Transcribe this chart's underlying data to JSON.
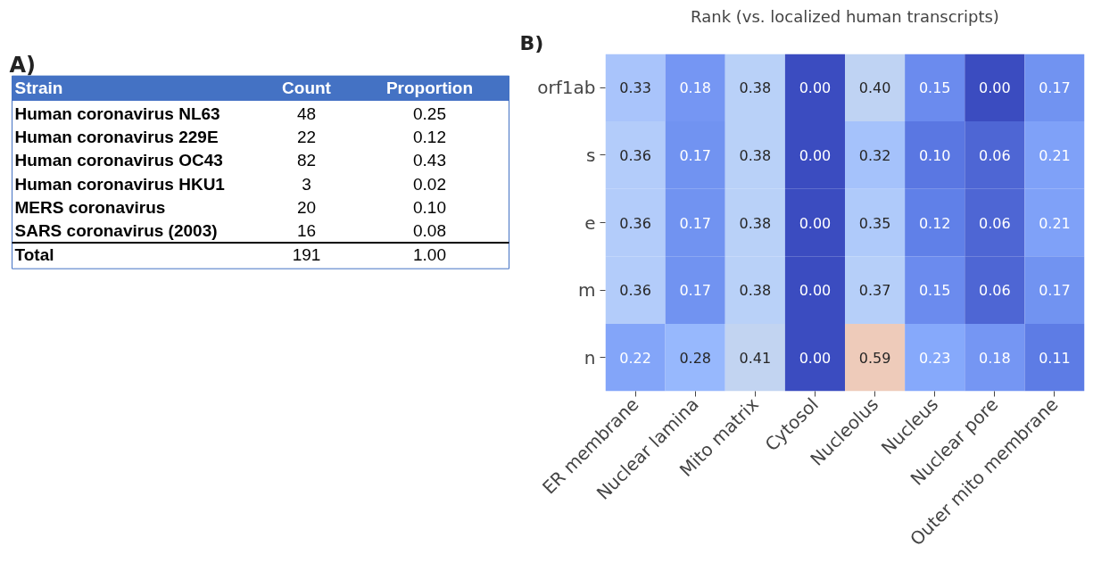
{
  "chart_data": [
    {
      "type": "other",
      "title": "A)",
      "categories": [
        "Strain",
        "Count",
        "Proportion"
      ],
      "color": "#4472c4",
      "annotations": [
        "Human coronavirus  NL63",
        "48",
        "0.25",
        "Human coronavirus  229E",
        "22",
        "0.12",
        "Human coronavirus  OC43",
        "82",
        "0.43",
        "Human coronavirus  HKU1",
        "3",
        "0.02",
        "MERS coronavirus",
        "20",
        "0.10",
        "SARS coronavirus  (2003)",
        "16",
        "0.08",
        "Total",
        "191",
        "1.00"
      ]
    },
    {
      "type": "heatmap",
      "title": "Rank (vs. localized human transcripts)",
      "annotations": [
        "B)"
      ],
      "categories": [
        "ER membrane",
        "Nuclear lamina",
        "Mito matrix",
        "Cytosol",
        "Nucleolus",
        "Nucleus",
        "Nuclear pore",
        "Outer mito membrane"
      ],
      "y_categories": [
        "orf1ab",
        "s",
        "e",
        "m",
        "n"
      ],
      "cells": [
        [
          0.33,
          0.18,
          0.38,
          0.0,
          0.4,
          0.15,
          0.0,
          0.17
        ],
        [
          0.36,
          0.17,
          0.38,
          0.0,
          0.32,
          0.1,
          0.06,
          0.21
        ],
        [
          0.36,
          0.17,
          0.38,
          0.0,
          0.35,
          0.12,
          0.06,
          0.21
        ],
        [
          0.36,
          0.17,
          0.38,
          0.0,
          0.37,
          0.15,
          0.06,
          0.17
        ],
        [
          0.22,
          0.28,
          0.41,
          0.0,
          0.59,
          0.23,
          0.18,
          0.11
        ]
      ],
      "cell_labels": [
        [
          "0.33",
          "0.18",
          "0.38",
          "0.00",
          "0.40",
          "0.15",
          "0.00",
          "0.17"
        ],
        [
          "0.36",
          "0.17",
          "0.38",
          "0.00",
          "0.32",
          "0.10",
          "0.06",
          "0.21"
        ],
        [
          "0.36",
          "0.17",
          "0.38",
          "0.00",
          "0.35",
          "0.12",
          "0.06",
          "0.21"
        ],
        [
          "0.36",
          "0.17",
          "0.38",
          "0.00",
          "0.37",
          "0.15",
          "0.06",
          "0.17"
        ],
        [
          "0.22",
          "0.28",
          "0.41",
          "0.00",
          "0.59",
          "0.23",
          "0.18",
          "0.11"
        ]
      ]
    }
  ]
}
